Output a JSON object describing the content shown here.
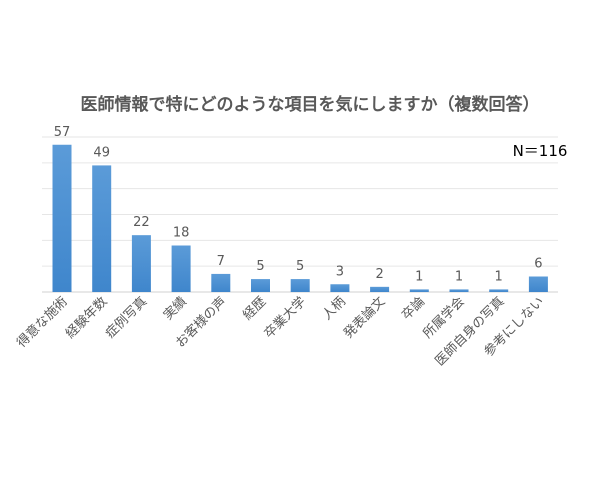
{
  "chart_data": {
    "type": "bar",
    "title": "医師情報で特にどのような項目を気にしますか（複数回答）",
    "annotation": "N＝116",
    "categories": [
      "得意な施術",
      "経験年数",
      "症例写真",
      "実績",
      "お客様の声",
      "経歴",
      "卒業大学",
      "人柄",
      "発表論文",
      "卒論",
      "所属学会",
      "医師自身の写真",
      "参考にしない"
    ],
    "values": [
      57,
      49,
      22,
      18,
      7,
      5,
      5,
      3,
      2,
      1,
      1,
      1,
      6
    ],
    "xlabel": "",
    "ylabel": "",
    "ylim": [
      0,
      60
    ],
    "grid": true,
    "grid_step": 10,
    "bar_color": "#4a8fd4",
    "legend": "none"
  }
}
